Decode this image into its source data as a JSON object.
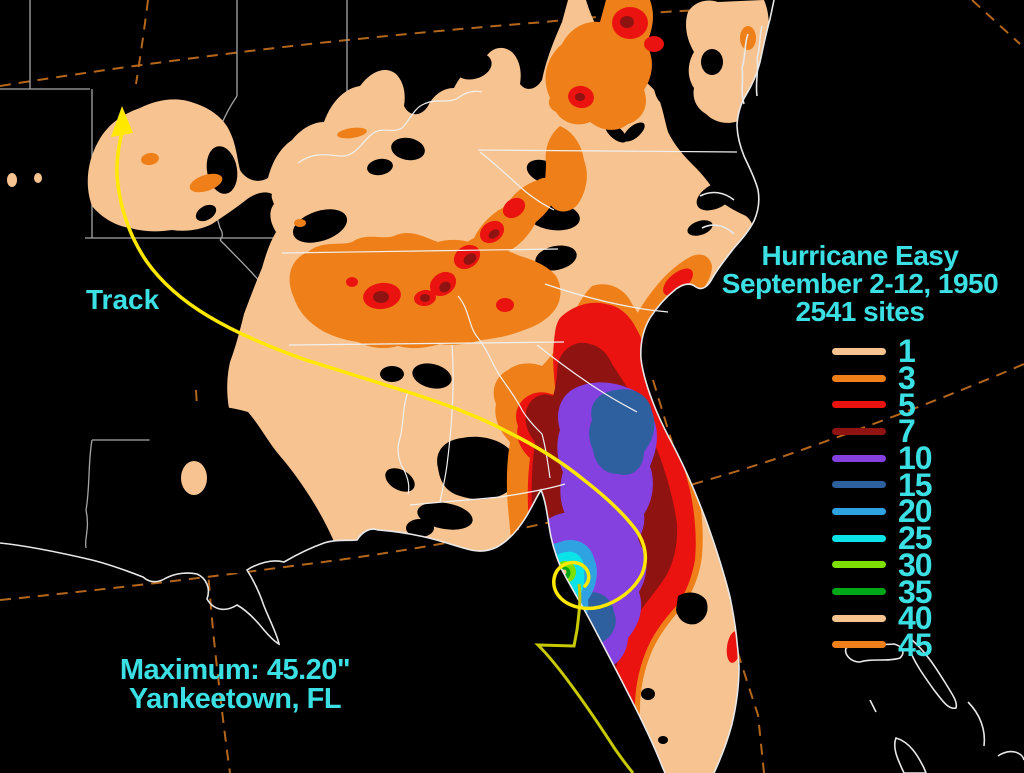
{
  "page": {
    "background": "#000000"
  },
  "title": {
    "line1": "Hurricane Easy",
    "line2": "September 2-12, 1950",
    "line3": "2541 sites"
  },
  "track": {
    "label": "Track"
  },
  "maximum": {
    "line1": "Maximum:  45.20\"",
    "line2": "Yankeetown, FL"
  },
  "legend": {
    "items": [
      {
        "value": "1",
        "color": "#F7C491"
      },
      {
        "value": "3",
        "color": "#EF8019"
      },
      {
        "value": "5",
        "color": "#EB1310"
      },
      {
        "value": "7",
        "color": "#8F1310"
      },
      {
        "value": "10",
        "color": "#8540E0"
      },
      {
        "value": "15",
        "color": "#2E5F9E"
      },
      {
        "value": "20",
        "color": "#2FA3E2"
      },
      {
        "value": "25",
        "color": "#0AE3E8"
      },
      {
        "value": "30",
        "color": "#7FE000"
      },
      {
        "value": "35",
        "color": "#00A818"
      },
      {
        "value": "40",
        "color": "#F7C491"
      },
      {
        "value": "45",
        "color": "#EF8019"
      }
    ]
  },
  "palette": {
    "p1": "#F7C491",
    "p3": "#EF8019",
    "p5": "#EB1310",
    "p7": "#8F1310",
    "p10": "#8540E0",
    "p15": "#2E5F9E",
    "p20": "#2FA3E2",
    "p25": "#0AE3E8",
    "p30": "#7FE000",
    "p35": "#00A818",
    "text_cyan": "#3BE0E4",
    "grid_dash": "#B4661B",
    "state_gray": "#A6A6A6",
    "coast_white": "#E8E8E8",
    "track_yellow": "#FFE800",
    "track_olive": "#C9C900"
  }
}
